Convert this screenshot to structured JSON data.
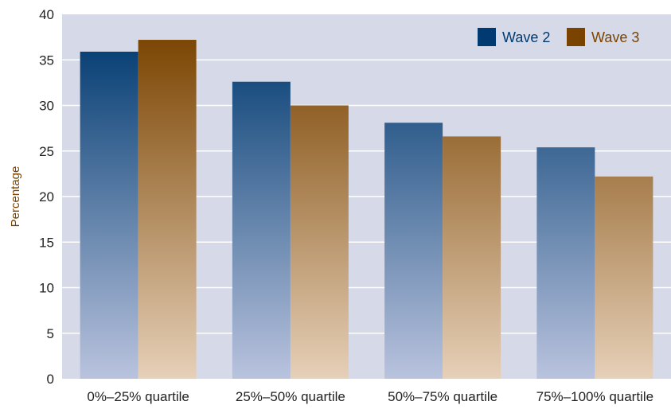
{
  "chart_data": {
    "type": "bar",
    "title": "",
    "xlabel": "",
    "ylabel": "Percentage",
    "ylim": [
      0,
      40
    ],
    "yticks": [
      0,
      5,
      10,
      15,
      20,
      25,
      30,
      35,
      40
    ],
    "grid": true,
    "legend_position": "top-right",
    "categories": [
      "0%–25% quartile",
      "25%–50% quartile",
      "50%–75% quartile",
      "75%–100% quartile"
    ],
    "series": [
      {
        "name": "Wave 2",
        "values": [
          35.9,
          32.6,
          28.1,
          25.4
        ],
        "color": "#003a70",
        "color_light": "#b9c3de"
      },
      {
        "name": "Wave 3",
        "values": [
          37.2,
          30.0,
          26.6,
          22.2
        ],
        "color": "#7a4300",
        "color_light": "#e6d0b8"
      }
    ],
    "colors": {
      "plot_background": "#d5d9e8",
      "gridline": "#ffffff",
      "ylabel_color": "#7a4300",
      "wave2_legend_text": "#003a70",
      "wave3_legend_text": "#7a4300"
    }
  }
}
